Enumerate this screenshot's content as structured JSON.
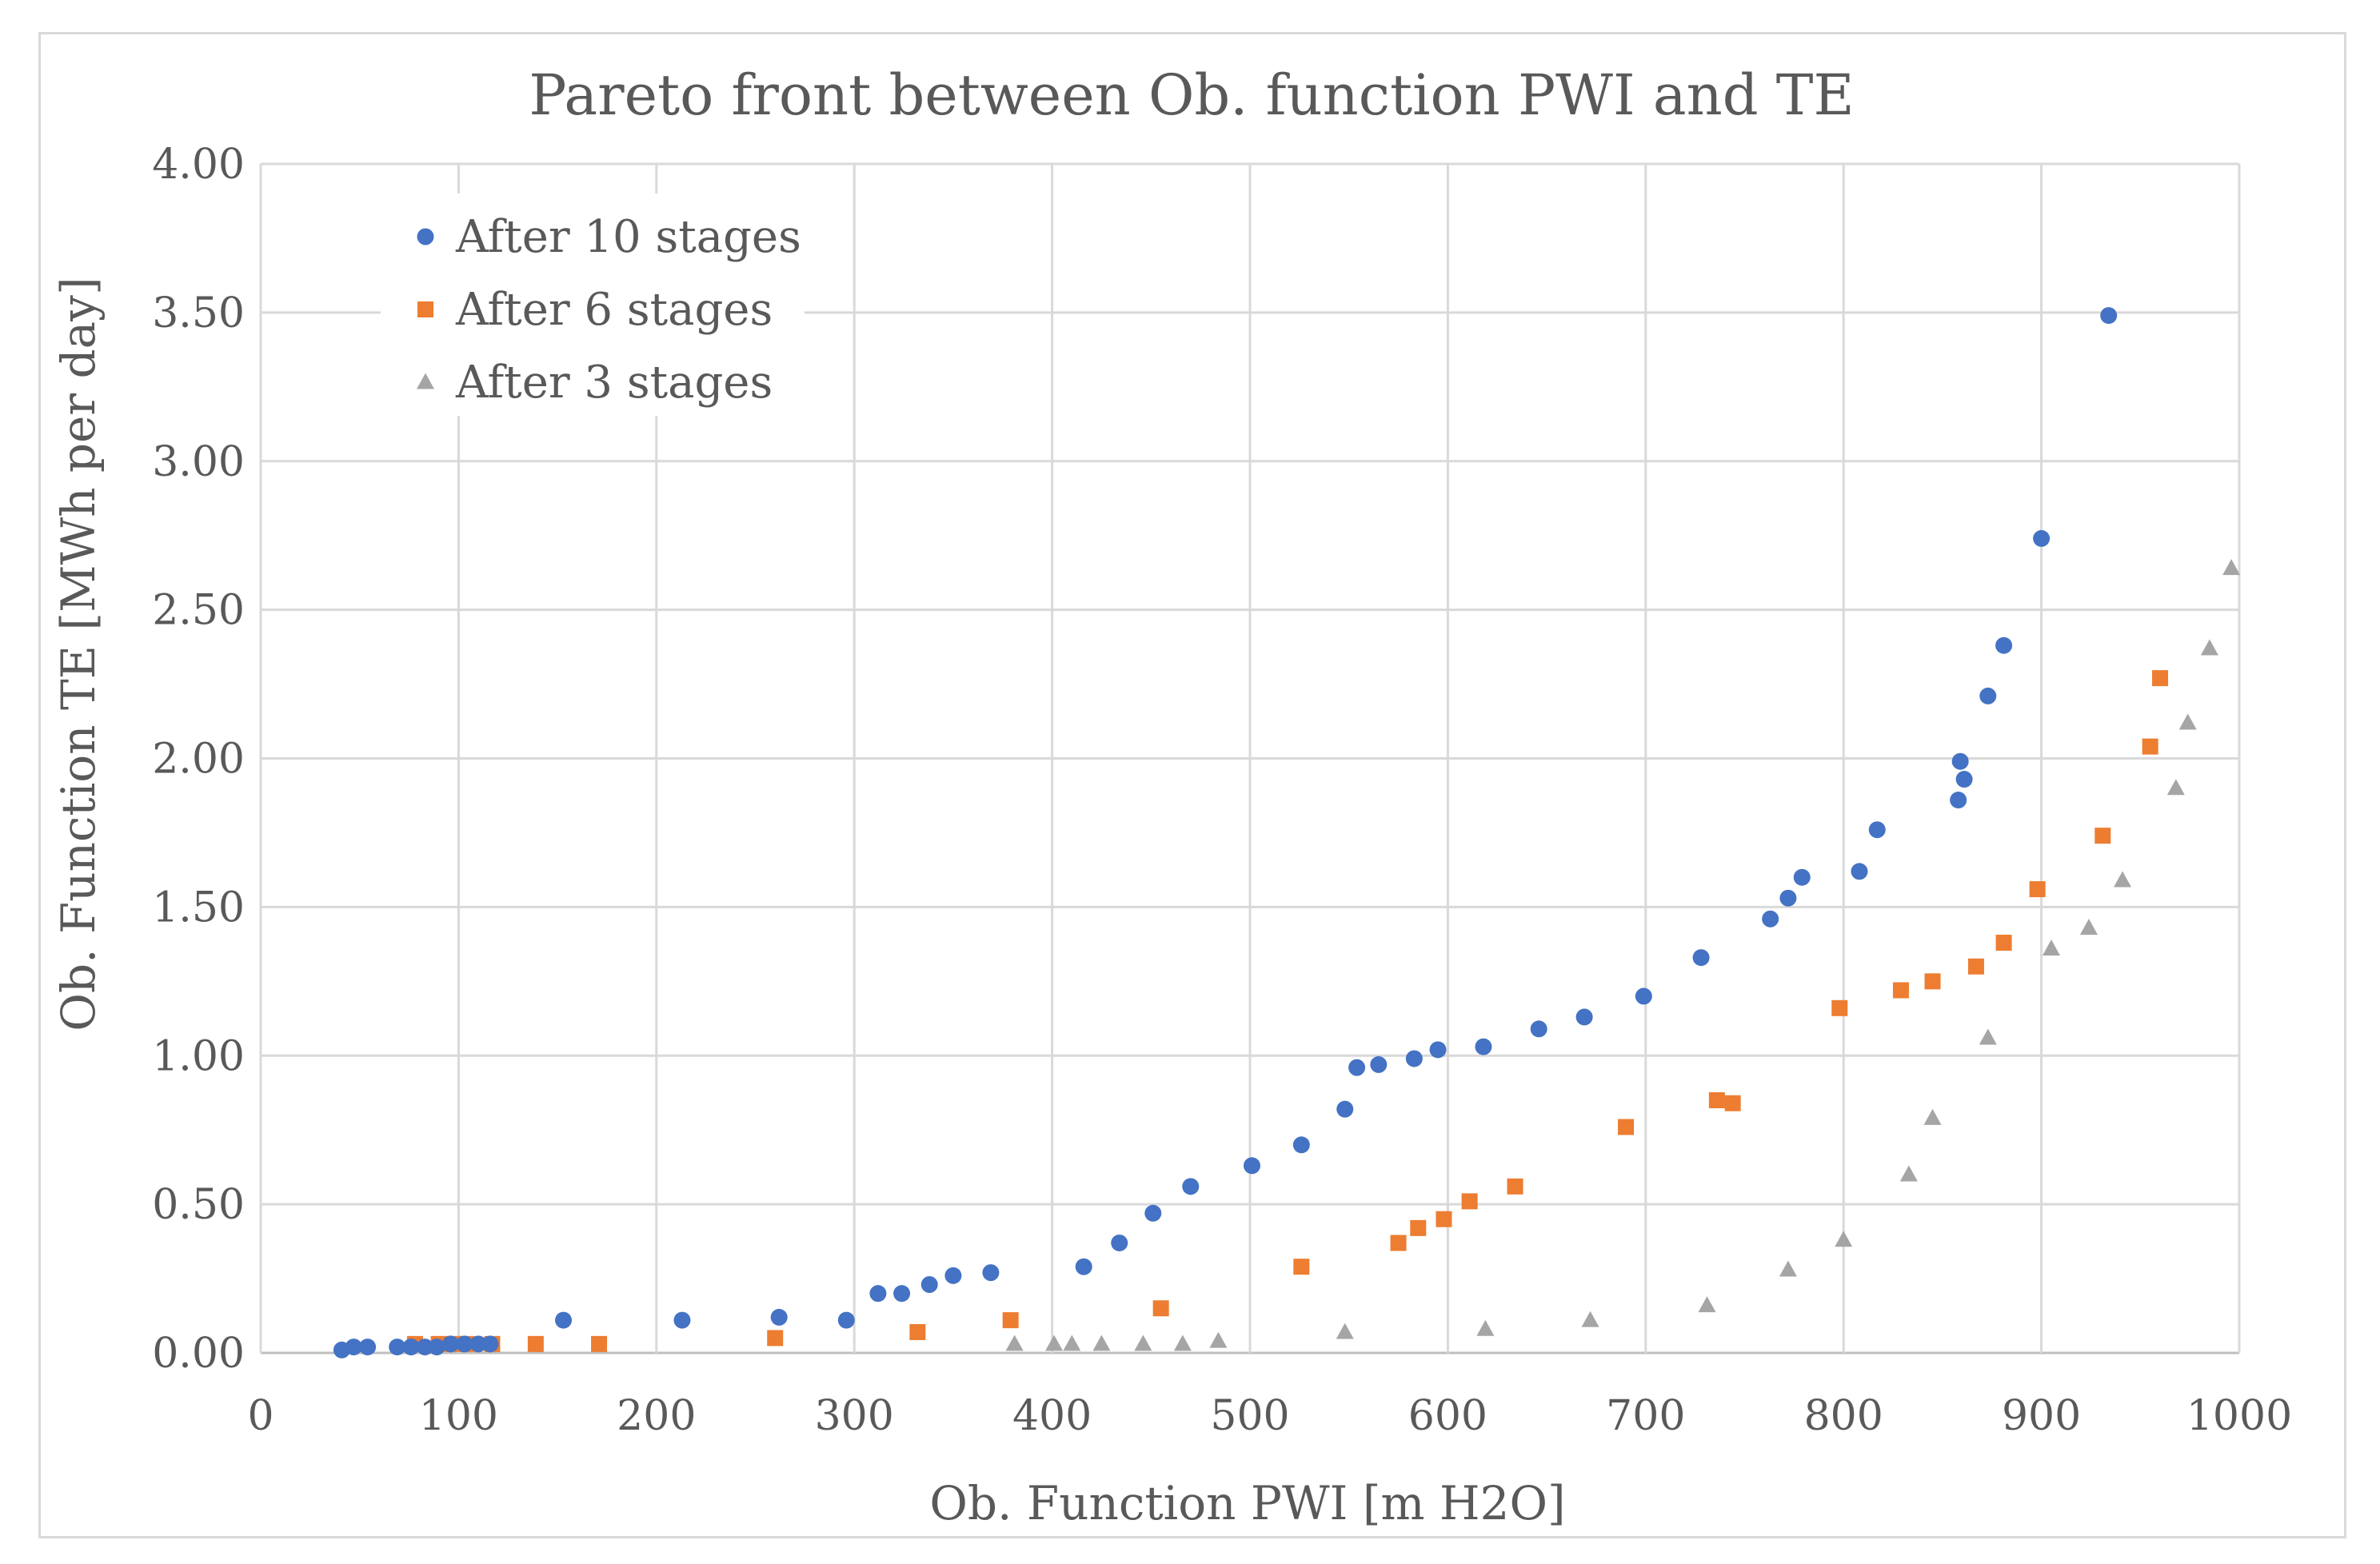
{
  "chart_data": {
    "type": "scatter",
    "title": "Pareto front between Ob. function PWI and TE",
    "xlabel": "Ob. Function PWI [m H2O]",
    "ylabel": "Ob. Function TE [MWh per day]",
    "xlim": [
      0,
      1000
    ],
    "ylim": [
      0,
      4
    ],
    "xticks": [
      "0",
      "100",
      "200",
      "300",
      "400",
      "500",
      "600",
      "700",
      "800",
      "900",
      "1000"
    ],
    "yticks": [
      "0.00",
      "0.50",
      "1.00",
      "1.50",
      "2.00",
      "2.50",
      "3.00",
      "3.50",
      "4.00"
    ],
    "legend_position": "top-left",
    "series": [
      {
        "name": "After 10 stages",
        "marker": "circle",
        "color": "#4472c4",
        "points": [
          [
            41,
            0.01
          ],
          [
            47,
            0.02
          ],
          [
            54,
            0.02
          ],
          [
            69,
            0.02
          ],
          [
            76,
            0.02
          ],
          [
            83,
            0.02
          ],
          [
            89,
            0.02
          ],
          [
            96,
            0.03
          ],
          [
            103,
            0.03
          ],
          [
            110,
            0.03
          ],
          [
            116,
            0.03
          ],
          [
            153,
            0.11
          ],
          [
            213,
            0.11
          ],
          [
            262,
            0.12
          ],
          [
            296,
            0.11
          ],
          [
            312,
            0.2
          ],
          [
            324,
            0.2
          ],
          [
            338,
            0.23
          ],
          [
            350,
            0.26
          ],
          [
            369,
            0.27
          ],
          [
            416,
            0.29
          ],
          [
            434,
            0.37
          ],
          [
            451,
            0.47
          ],
          [
            470,
            0.56
          ],
          [
            501,
            0.63
          ],
          [
            526,
            0.7
          ],
          [
            548,
            0.82
          ],
          [
            554,
            0.96
          ],
          [
            565,
            0.97
          ],
          [
            583,
            0.99
          ],
          [
            595,
            1.02
          ],
          [
            618,
            1.03
          ],
          [
            646,
            1.09
          ],
          [
            669,
            1.13
          ],
          [
            699,
            1.2
          ],
          [
            728,
            1.33
          ],
          [
            763,
            1.46
          ],
          [
            772,
            1.53
          ],
          [
            779,
            1.6
          ],
          [
            808,
            1.62
          ],
          [
            817,
            1.76
          ],
          [
            858,
            1.86
          ],
          [
            859,
            1.99
          ],
          [
            861,
            1.93
          ],
          [
            873,
            2.21
          ],
          [
            881,
            2.38
          ],
          [
            900,
            2.74
          ],
          [
            934,
            3.49
          ]
        ]
      },
      {
        "name": "After 6 stages",
        "marker": "square",
        "color": "#ed7d31",
        "points": [
          [
            78,
            0.03
          ],
          [
            90,
            0.03
          ],
          [
            98,
            0.03
          ],
          [
            104,
            0.03
          ],
          [
            117,
            0.03
          ],
          [
            139,
            0.03
          ],
          [
            171,
            0.03
          ],
          [
            260,
            0.05
          ],
          [
            332,
            0.07
          ],
          [
            379,
            0.11
          ],
          [
            455,
            0.15
          ],
          [
            526,
            0.29
          ],
          [
            575,
            0.37
          ],
          [
            585,
            0.42
          ],
          [
            598,
            0.45
          ],
          [
            611,
            0.51
          ],
          [
            634,
            0.56
          ],
          [
            690,
            0.76
          ],
          [
            736,
            0.85
          ],
          [
            744,
            0.84
          ],
          [
            798,
            1.16
          ],
          [
            829,
            1.22
          ],
          [
            845,
            1.25
          ],
          [
            867,
            1.3
          ],
          [
            881,
            1.38
          ],
          [
            898,
            1.56
          ],
          [
            931,
            1.74
          ],
          [
            955,
            2.04
          ],
          [
            960,
            2.27
          ]
        ]
      },
      {
        "name": "After 3 stages",
        "marker": "triangle",
        "color": "#a5a5a5",
        "points": [
          [
            381,
            0.03
          ],
          [
            401,
            0.03
          ],
          [
            410,
            0.03
          ],
          [
            425,
            0.03
          ],
          [
            446,
            0.03
          ],
          [
            466,
            0.03
          ],
          [
            484,
            0.04
          ],
          [
            548,
            0.07
          ],
          [
            619,
            0.08
          ],
          [
            672,
            0.11
          ],
          [
            731,
            0.16
          ],
          [
            772,
            0.28
          ],
          [
            800,
            0.38
          ],
          [
            833,
            0.6
          ],
          [
            845,
            0.79
          ],
          [
            873,
            1.06
          ],
          [
            905,
            1.36
          ],
          [
            924,
            1.43
          ],
          [
            941,
            1.59
          ],
          [
            968,
            1.9
          ],
          [
            974,
            2.12
          ],
          [
            985,
            2.37
          ],
          [
            996,
            2.64
          ]
        ]
      }
    ]
  }
}
